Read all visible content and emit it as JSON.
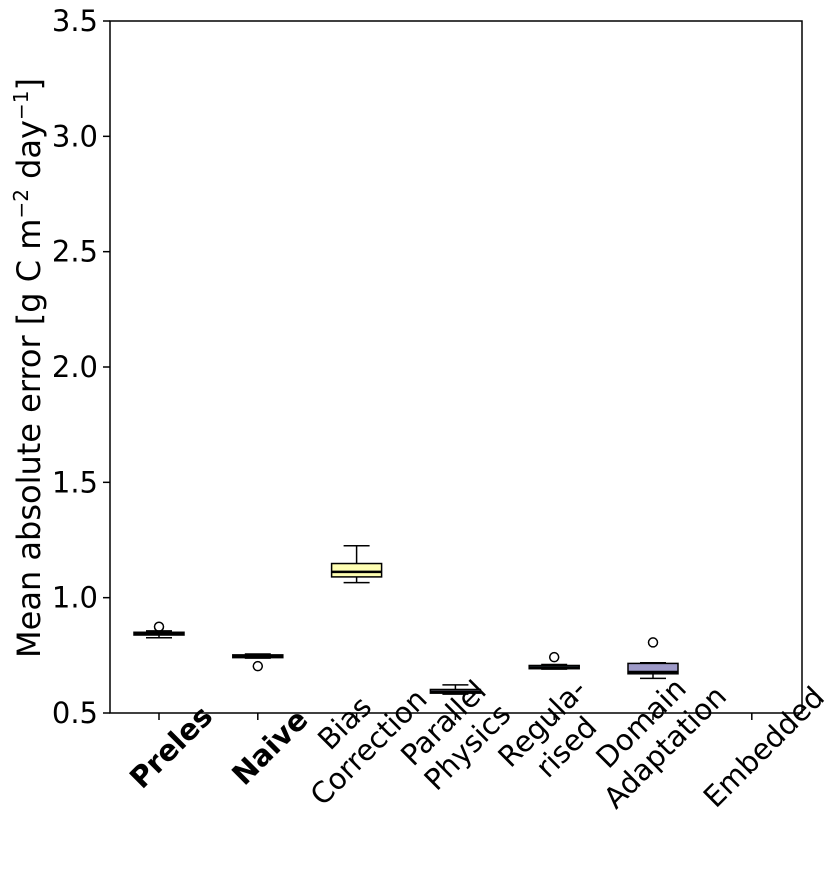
{
  "chart_data": {
    "type": "box",
    "ylabel": "Mean absolute error [g C m",
    "ylabel_sup1": "−2",
    "ylabel_mid": " day",
    "ylabel_sup2": "−1",
    "ylabel_end": "]",
    "ylim": [
      0.5,
      3.5
    ],
    "yticks": [
      "0.5",
      "1.0",
      "1.5",
      "2.0",
      "2.5",
      "3.0",
      "3.5"
    ],
    "ytick_values": [
      0.5,
      1.0,
      1.5,
      2.0,
      2.5,
      3.0,
      3.5
    ],
    "categories": [
      {
        "lines": [
          "Preles"
        ],
        "bold": true
      },
      {
        "lines": [
          "Naive"
        ],
        "bold": true
      },
      {
        "lines": [
          "Bias",
          "Correction"
        ],
        "bold": false
      },
      {
        "lines": [
          "Parallel",
          "Physics"
        ],
        "bold": false
      },
      {
        "lines": [
          "Regula-",
          "rised"
        ],
        "bold": false
      },
      {
        "lines": [
          "Domain",
          "Adaptation"
        ],
        "bold": false
      },
      {
        "lines": [
          "Embedded"
        ],
        "bold": false
      }
    ],
    "boxes": [
      {
        "name": "Preles",
        "whisker_low": 0.826,
        "q1": 0.838,
        "median": 0.843,
        "q3": 0.85,
        "whisker_high": 0.856,
        "outliers": [
          0.874
        ],
        "color": "#fb8072"
      },
      {
        "name": "Naive",
        "whisker_low": 0.738,
        "q1": 0.74,
        "median": 0.745,
        "q3": 0.752,
        "whisker_high": 0.756,
        "outliers": [
          0.703
        ],
        "color": "#fccde5"
      },
      {
        "name": "Bias Correction",
        "whisker_low": 1.065,
        "q1": 1.09,
        "median": 1.112,
        "q3": 1.148,
        "whisker_high": 1.225,
        "outliers": [],
        "color": "#ffffb3"
      },
      {
        "name": "Parallel Physics",
        "whisker_low": 0.582,
        "q1": 0.586,
        "median": 0.592,
        "q3": 0.602,
        "whisker_high": 0.622,
        "outliers": [],
        "color": "#bebada"
      },
      {
        "name": "Regularised",
        "whisker_low": 0.69,
        "q1": 0.692,
        "median": 0.697,
        "q3": 0.706,
        "whisker_high": 0.71,
        "outliers": [
          0.742
        ],
        "color": "#80b1d3"
      },
      {
        "name": "Domain Adaptation",
        "whisker_low": 0.65,
        "q1": 0.67,
        "median": 0.678,
        "q3": 0.715,
        "whisker_high": 0.718,
        "outliers": [
          0.806
        ],
        "color": "#9e9ac8"
      },
      {
        "name": "Embedded",
        "whisker_low": null,
        "q1": null,
        "median": null,
        "q3": null,
        "whisker_high": null,
        "outliers": [],
        "color": "#cccccc"
      }
    ]
  }
}
